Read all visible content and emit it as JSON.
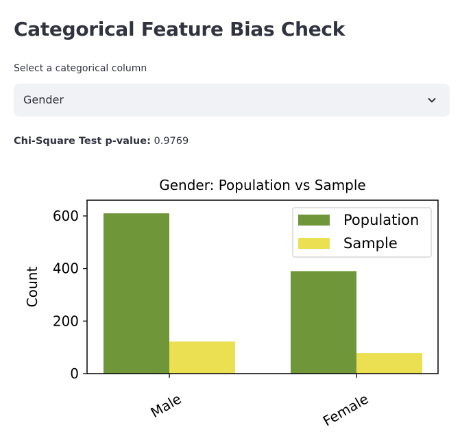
{
  "page": {
    "title": "Categorical Feature Bias Check",
    "select_label": "Select a categorical column",
    "selected_value": "Gender",
    "chevron_icon": "chevron-down-icon",
    "pvalue_label": "Chi-Square Test p-value:",
    "pvalue_value": "0.9769"
  },
  "chart_data": {
    "type": "bar",
    "title": "Gender: Population vs Sample",
    "xlabel": "",
    "ylabel": "Count",
    "categories": [
      "Male",
      "Female"
    ],
    "series": [
      {
        "name": "Population",
        "values": [
          610,
          390
        ],
        "color": "#6f9639"
      },
      {
        "name": "Sample",
        "values": [
          122,
          78
        ],
        "color": "#ebe051"
      }
    ],
    "ylim": [
      0,
      660
    ],
    "yticks": [
      0,
      200,
      400,
      600
    ],
    "legend": "top-right",
    "grid": false
  }
}
